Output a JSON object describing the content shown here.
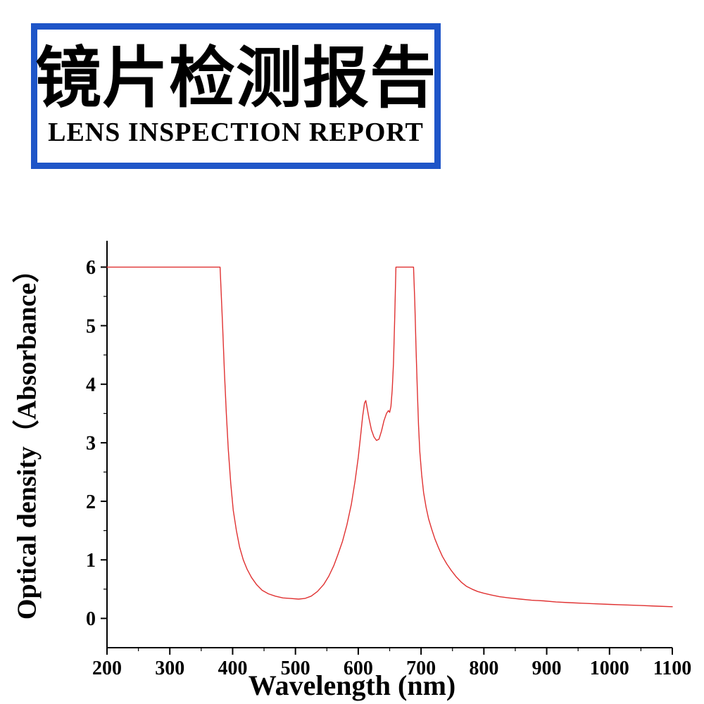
{
  "header": {
    "title_cn": "镜片检测报告",
    "title_en": "LENS INSPECTION REPORT",
    "border_color": "#1e55c8"
  },
  "chart_data": {
    "type": "line",
    "title": "",
    "xlabel": "Wavelength (nm)",
    "ylabel": "Optical density（Absorbance）",
    "xlim": [
      200,
      1100
    ],
    "ylim": [
      -0.5,
      6.45
    ],
    "x_major_ticks": [
      200,
      300,
      400,
      500,
      600,
      700,
      800,
      900,
      1000,
      1100
    ],
    "x_minor_step": 50,
    "y_major_ticks": [
      0,
      1,
      2,
      3,
      4,
      5,
      6
    ],
    "y_minor_step": 0.5,
    "grid": false,
    "legend": "none",
    "line_color": "#e03131",
    "axis_color": "#000000",
    "series": [
      {
        "name": "Optical density",
        "points": [
          [
            200,
            6.0
          ],
          [
            380,
            6.0
          ],
          [
            384,
            5.0
          ],
          [
            387,
            4.2
          ],
          [
            390,
            3.5
          ],
          [
            393,
            2.9
          ],
          [
            397,
            2.3
          ],
          [
            401,
            1.85
          ],
          [
            406,
            1.5
          ],
          [
            411,
            1.22
          ],
          [
            417,
            1.0
          ],
          [
            423,
            0.84
          ],
          [
            430,
            0.7
          ],
          [
            438,
            0.58
          ],
          [
            447,
            0.48
          ],
          [
            457,
            0.42
          ],
          [
            468,
            0.38
          ],
          [
            480,
            0.35
          ],
          [
            492,
            0.34
          ],
          [
            505,
            0.33
          ],
          [
            515,
            0.34
          ],
          [
            525,
            0.38
          ],
          [
            535,
            0.46
          ],
          [
            545,
            0.58
          ],
          [
            553,
            0.72
          ],
          [
            561,
            0.9
          ],
          [
            568,
            1.1
          ],
          [
            575,
            1.32
          ],
          [
            582,
            1.6
          ],
          [
            589,
            1.95
          ],
          [
            595,
            2.35
          ],
          [
            600,
            2.75
          ],
          [
            604,
            3.15
          ],
          [
            607,
            3.45
          ],
          [
            610,
            3.68
          ],
          [
            612,
            3.72
          ],
          [
            614,
            3.6
          ],
          [
            617,
            3.42
          ],
          [
            621,
            3.22
          ],
          [
            625,
            3.1
          ],
          [
            629,
            3.04
          ],
          [
            633,
            3.06
          ],
          [
            637,
            3.2
          ],
          [
            641,
            3.38
          ],
          [
            645,
            3.5
          ],
          [
            648,
            3.55
          ],
          [
            650,
            3.52
          ],
          [
            652,
            3.62
          ],
          [
            654,
            3.9
          ],
          [
            656,
            4.35
          ],
          [
            657,
            4.7
          ],
          [
            658,
            5.1
          ],
          [
            659,
            5.55
          ],
          [
            660,
            6.0
          ],
          [
            688,
            6.0
          ],
          [
            690,
            5.4
          ],
          [
            692,
            4.6
          ],
          [
            694,
            3.9
          ],
          [
            696,
            3.3
          ],
          [
            698,
            2.85
          ],
          [
            701,
            2.45
          ],
          [
            704,
            2.15
          ],
          [
            708,
            1.9
          ],
          [
            712,
            1.7
          ],
          [
            717,
            1.52
          ],
          [
            722,
            1.36
          ],
          [
            728,
            1.2
          ],
          [
            734,
            1.06
          ],
          [
            741,
            0.93
          ],
          [
            748,
            0.82
          ],
          [
            756,
            0.71
          ],
          [
            764,
            0.62
          ],
          [
            772,
            0.55
          ],
          [
            781,
            0.5
          ],
          [
            790,
            0.46
          ],
          [
            800,
            0.43
          ],
          [
            812,
            0.4
          ],
          [
            825,
            0.37
          ],
          [
            840,
            0.35
          ],
          [
            858,
            0.33
          ],
          [
            876,
            0.31
          ],
          [
            895,
            0.3
          ],
          [
            915,
            0.28
          ],
          [
            935,
            0.27
          ],
          [
            955,
            0.26
          ],
          [
            975,
            0.25
          ],
          [
            1000,
            0.24
          ],
          [
            1025,
            0.23
          ],
          [
            1050,
            0.22
          ],
          [
            1075,
            0.21
          ],
          [
            1100,
            0.2
          ]
        ]
      }
    ]
  }
}
